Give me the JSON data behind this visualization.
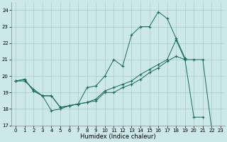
{
  "xlabel": "Humidex (Indice chaleur)",
  "bg_color": "#cce8e8",
  "grid_color": "#aacccc",
  "line_color": "#1a6b5a",
  "xlim": [
    -0.5,
    23.5
  ],
  "ylim": [
    17,
    24.5
  ],
  "yticks": [
    17,
    18,
    19,
    20,
    21,
    22,
    23,
    24
  ],
  "xticks": [
    0,
    1,
    2,
    3,
    4,
    5,
    6,
    7,
    8,
    9,
    10,
    11,
    12,
    13,
    14,
    15,
    16,
    17,
    18,
    19,
    20,
    21,
    22,
    23
  ],
  "series": [
    {
      "x": [
        0,
        1,
        2,
        3,
        4,
        5,
        6,
        7,
        8,
        9,
        10,
        11,
        12,
        13,
        14,
        15,
        16,
        17,
        18,
        19
      ],
      "y": [
        19.7,
        19.7,
        19.2,
        18.8,
        17.9,
        18.0,
        18.2,
        18.3,
        19.3,
        19.4,
        20.0,
        21.0,
        20.6,
        22.5,
        23.0,
        23.0,
        23.9,
        23.5,
        22.3,
        21.1
      ]
    },
    {
      "x": [
        0,
        1,
        2,
        3,
        4,
        5,
        6,
        7,
        8,
        9,
        10,
        11,
        12,
        13,
        14,
        15,
        16,
        17,
        18,
        19,
        20,
        21
      ],
      "y": [
        19.7,
        19.8,
        19.1,
        18.8,
        18.8,
        18.1,
        18.2,
        18.3,
        18.4,
        18.6,
        19.1,
        19.3,
        19.5,
        19.7,
        20.1,
        20.4,
        20.7,
        21.0,
        22.2,
        21.0,
        17.5,
        17.5
      ]
    },
    {
      "x": [
        0,
        1,
        2,
        3,
        4,
        5,
        6,
        7,
        8,
        9,
        10,
        11,
        12,
        13,
        14,
        15,
        16,
        17,
        18,
        19,
        20,
        21,
        22,
        23
      ],
      "y": [
        19.7,
        19.8,
        19.1,
        18.8,
        18.8,
        18.1,
        18.2,
        18.3,
        18.4,
        18.5,
        19.0,
        19.0,
        19.3,
        19.5,
        19.8,
        20.2,
        20.5,
        20.9,
        21.2,
        21.0,
        21.0,
        21.0,
        16.8,
        16.7
      ]
    }
  ]
}
